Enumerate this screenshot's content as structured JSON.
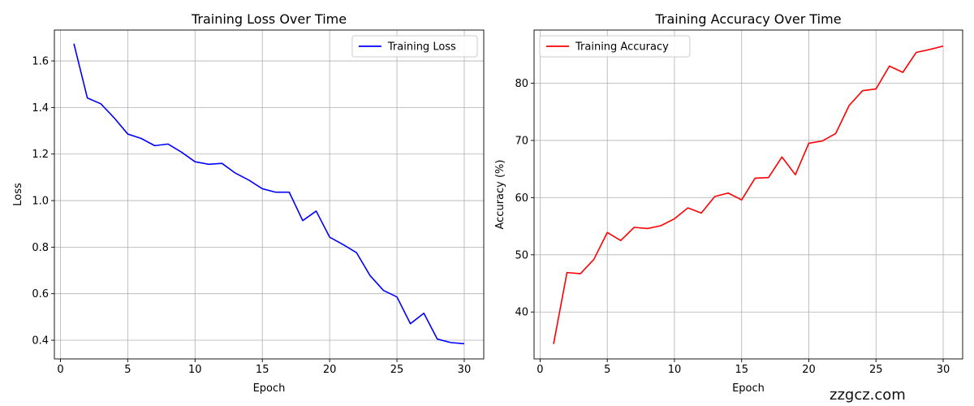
{
  "chart_data": [
    {
      "type": "line",
      "title": "Training Loss Over Time",
      "xlabel": "Epoch",
      "ylabel": "Loss",
      "xlim": [
        -0.45,
        31.45
      ],
      "ylim": [
        0.3198,
        1.7328
      ],
      "xticks": [
        0,
        5,
        10,
        15,
        20,
        25,
        30
      ],
      "yticks": [
        0.4,
        0.6,
        0.8,
        1.0,
        1.2,
        1.4,
        1.6
      ],
      "ytick_labels": [
        "0.4",
        "0.6",
        "0.8",
        "1.0",
        "1.2",
        "1.4",
        "1.6"
      ],
      "grid": true,
      "legend_position": "top-right",
      "x": [
        1,
        2,
        3,
        4,
        5,
        6,
        7,
        8,
        9,
        10,
        11,
        12,
        13,
        14,
        15,
        16,
        17,
        18,
        19,
        20,
        21,
        22,
        23,
        24,
        25,
        26,
        27,
        28,
        29,
        30
      ],
      "series": [
        {
          "name": "Training Loss",
          "color": "#0000ff",
          "values": [
            1.674,
            1.441,
            1.416,
            1.355,
            1.286,
            1.267,
            1.236,
            1.243,
            1.208,
            1.167,
            1.156,
            1.16,
            1.118,
            1.088,
            1.051,
            1.036,
            1.036,
            0.914,
            0.955,
            0.843,
            0.811,
            0.776,
            0.678,
            0.614,
            0.586,
            0.471,
            0.516,
            0.405,
            0.39,
            0.385
          ]
        }
      ]
    },
    {
      "type": "line",
      "title": "Training Accuracy Over Time",
      "xlabel": "Epoch",
      "ylabel": "Accuracy (%)",
      "xlim": [
        -0.45,
        31.45
      ],
      "ylim": [
        31.8,
        89.3
      ],
      "xticks": [
        0,
        5,
        10,
        15,
        20,
        25,
        30
      ],
      "yticks": [
        40,
        50,
        60,
        70,
        80
      ],
      "ytick_labels": [
        "40",
        "50",
        "60",
        "70",
        "80"
      ],
      "grid": true,
      "legend_position": "top-left",
      "x": [
        1,
        2,
        3,
        4,
        5,
        6,
        7,
        8,
        9,
        10,
        11,
        12,
        13,
        14,
        15,
        16,
        17,
        18,
        19,
        20,
        21,
        22,
        23,
        24,
        25,
        26,
        27,
        28,
        29,
        30
      ],
      "series": [
        {
          "name": "Training Accuracy",
          "color": "#ff0000",
          "values": [
            34.4,
            46.9,
            46.7,
            49.2,
            53.9,
            52.5,
            54.8,
            54.6,
            55.1,
            56.3,
            58.2,
            57.3,
            60.2,
            60.8,
            59.6,
            63.4,
            63.5,
            67.1,
            64.0,
            69.5,
            69.9,
            71.2,
            76.1,
            78.7,
            79.0,
            83.0,
            81.9,
            85.4,
            85.9,
            86.5
          ]
        }
      ]
    }
  ],
  "watermark": "zzgcz.com"
}
